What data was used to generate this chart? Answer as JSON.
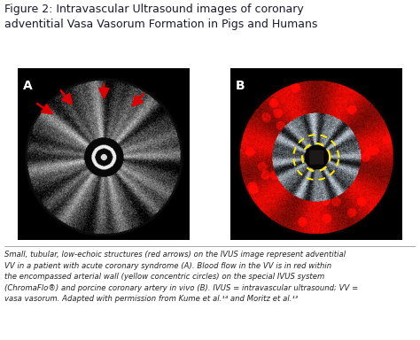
{
  "title": "Figure 2: Intravascular Ultrasound images of coronary\nadventitial Vasa Vasorum Formation in Pigs and Humans",
  "label_A": "A",
  "label_B": "B",
  "caption": "Small, tubular, low-echoic structures (red arrows) on the IVUS image represent adventitial\nVV in a patient with acute coronary syndrome (A). Blood flow in the VV is in red within\nthe encompassed arterial wall (yellow concentric circles) on the special IVUS system\n(ChromaFlo®) and porcine coronary artery in vivo (B). IVUS = intravascular ultrasound; VV =\nvasa vasorum. Adapted with permission from Kume et al.¹⁴ and Moritz et al.¹³",
  "bg_color": "#ffffff",
  "title_color": "#1a1a2e",
  "caption_color": "#222222",
  "arrow_color": "#dd0000",
  "yellow_circle_color": "#ffee00",
  "fig_width": 4.74,
  "fig_height": 3.84
}
